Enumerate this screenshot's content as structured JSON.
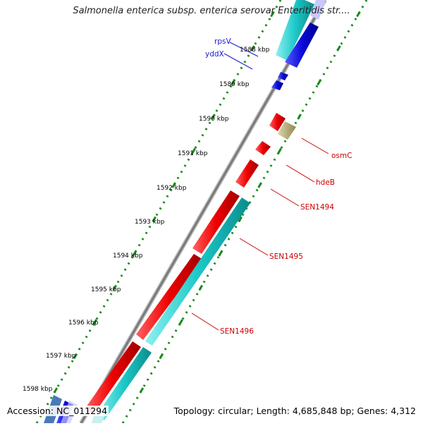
{
  "title": "Salmonella enterica subsp. enterica serovar Enteritidis str....",
  "footer": {
    "accession": "Accession: NC_011294",
    "topology": "Topology: circular; Length: 4,685,848 bp; Genes: 4,312"
  },
  "ticks": [
    {
      "label": "1588 kbp"
    },
    {
      "label": "1589 kbp"
    },
    {
      "label": "1590 kbp"
    },
    {
      "label": "1591 kbp"
    },
    {
      "label": "1592 kbp"
    },
    {
      "label": "1593 kbp"
    },
    {
      "label": "1594 kbp"
    },
    {
      "label": "1595 kbp"
    },
    {
      "label": "1596 kbp"
    },
    {
      "label": "1597 kbp"
    },
    {
      "label": "1598 kbp"
    }
  ],
  "gene_labels": {
    "rpsV": "rpsV",
    "yddX": "yddX",
    "osmC": "osmC",
    "hdeB": "hdeB",
    "SEN1494": "SEN1494",
    "SEN1495": "SEN1495",
    "SEN1496": "SEN1496"
  },
  "colors": {
    "backbone": "#888888",
    "tick_dots": "#1a8a1a",
    "red_gene": "#ee0000",
    "cyan_gene": "#1ec8c8",
    "blue_gene": "#0a0adc",
    "khaki_gene": "#b8ae70",
    "red_label": "#cc0000",
    "blue_label": "#1a1acc"
  }
}
